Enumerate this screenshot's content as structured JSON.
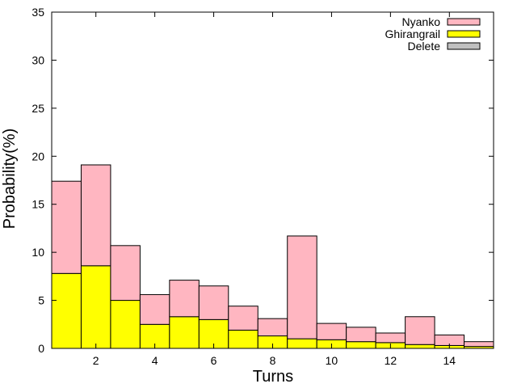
{
  "chart_data": {
    "type": "bar",
    "stacked": true,
    "xlabel": "Turns",
    "ylabel": "Probability(%)",
    "x": [
      1,
      2,
      3,
      4,
      5,
      6,
      7,
      8,
      9,
      10,
      11,
      12,
      13,
      14,
      15
    ],
    "xlim": [
      0.5,
      15.5
    ],
    "ylim": [
      0,
      35
    ],
    "xticks": [
      "2",
      "4",
      "6",
      "8",
      "10",
      "12",
      "14"
    ],
    "yticks": [
      "0",
      "5",
      "10",
      "15",
      "20",
      "25",
      "30",
      "35"
    ],
    "grid": false,
    "legend_position": "top-right",
    "series": [
      {
        "name": "Delete",
        "color": "#c0c0c0",
        "values": [
          0,
          0,
          0,
          0,
          0,
          0,
          0,
          0,
          0,
          0,
          0,
          0,
          0,
          0,
          0
        ]
      },
      {
        "name": "Ghirangrail",
        "color": "#ffff00",
        "values": [
          7.8,
          8.6,
          5.0,
          2.5,
          3.3,
          3.0,
          1.9,
          1.3,
          1.0,
          0.9,
          0.7,
          0.6,
          0.4,
          0.3,
          0.2
        ]
      },
      {
        "name": "Nyanko",
        "color": "#ffb6c1",
        "values": [
          9.6,
          10.5,
          5.7,
          3.1,
          3.8,
          3.5,
          2.5,
          1.8,
          10.7,
          1.7,
          1.5,
          1.0,
          2.9,
          1.1,
          0.5
        ]
      }
    ],
    "legend_order": [
      "Nyanko",
      "Ghirangrail",
      "Delete"
    ]
  }
}
